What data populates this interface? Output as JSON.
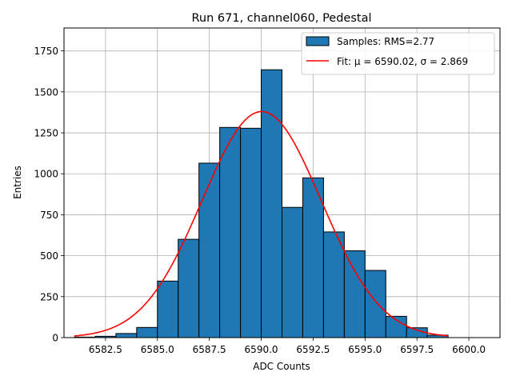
{
  "chart_data": {
    "type": "bar",
    "title": "Run 671, channel060, Pedestal",
    "xlabel": "ADC Counts",
    "ylabel": "Entries",
    "xlim": [
      6580.5,
      6601.5
    ],
    "ylim": [
      0,
      1890
    ],
    "xticks": [
      6582.5,
      6585.0,
      6587.5,
      6590.0,
      6592.5,
      6595.0,
      6597.5,
      6600.0
    ],
    "xtick_labels": [
      "6582.5",
      "6585.0",
      "6587.5",
      "6590.0",
      "6592.5",
      "6595.0",
      "6597.5",
      "6600.0"
    ],
    "yticks": [
      0,
      250,
      500,
      750,
      1000,
      1250,
      1500,
      1750
    ],
    "ytick_labels": [
      "0",
      "250",
      "500",
      "750",
      "1000",
      "1250",
      "1500",
      "1750"
    ],
    "grid": true,
    "legend_position": "top-right",
    "bin_edges": [
      6581,
      6582,
      6583,
      6584,
      6585,
      6586,
      6587,
      6588,
      6589,
      6590,
      6591,
      6592,
      6593,
      6594,
      6595,
      6596,
      6597,
      6598,
      6599
    ],
    "series": [
      {
        "name": "Samples: RMS=2.77",
        "kind": "histogram",
        "color": "#1f77b4",
        "values": [
          3,
          8,
          25,
          62,
          345,
          600,
          1065,
          1283,
          1278,
          1635,
          795,
          975,
          645,
          530,
          410,
          130,
          60,
          15
        ]
      },
      {
        "name": "Fit: μ = 6590.02, σ = 2.869",
        "kind": "gaussian_fit",
        "color": "#ff0000",
        "mu": 6590.02,
        "sigma": 2.869,
        "amplitude": 1380,
        "x_range": [
          6581,
          6599
        ]
      }
    ]
  }
}
